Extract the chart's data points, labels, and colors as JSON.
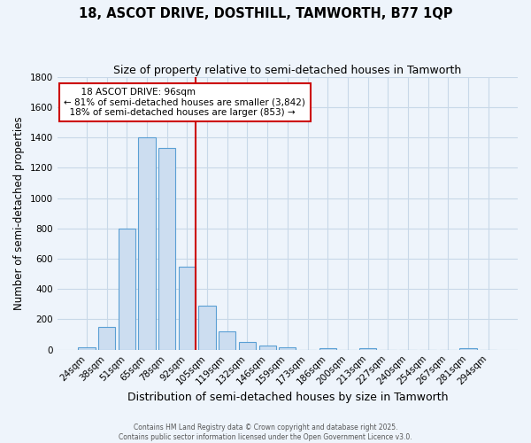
{
  "title1": "18, ASCOT DRIVE, DOSTHILL, TAMWORTH, B77 1QP",
  "title2": "Size of property relative to semi-detached houses in Tamworth",
  "xlabel": "Distribution of semi-detached houses by size in Tamworth",
  "ylabel": "Number of semi-detached properties",
  "bar_labels": [
    "24sqm",
    "38sqm",
    "51sqm",
    "65sqm",
    "78sqm",
    "92sqm",
    "105sqm",
    "119sqm",
    "132sqm",
    "146sqm",
    "159sqm",
    "173sqm",
    "186sqm",
    "200sqm",
    "213sqm",
    "227sqm",
    "240sqm",
    "254sqm",
    "267sqm",
    "281sqm",
    "294sqm"
  ],
  "bar_values": [
    15,
    150,
    800,
    1400,
    1330,
    550,
    290,
    120,
    50,
    25,
    15,
    0,
    10,
    0,
    10,
    0,
    0,
    0,
    0,
    10,
    0
  ],
  "bar_color": "#ccddf0",
  "bar_edge_color": "#5a9fd4",
  "bg_color": "#eef4fb",
  "grid_color": "#c8d8e8",
  "vline_x": 6,
  "vline_color": "#cc0000",
  "annotation_title": "18 ASCOT DRIVE: 96sqm",
  "annotation_line1": "← 81% of semi-detached houses are smaller (3,842)",
  "annotation_line2": "  18% of semi-detached houses are larger (853) →",
  "annotation_box_color": "#cc0000",
  "footer1": "Contains HM Land Registry data © Crown copyright and database right 2025.",
  "footer2": "Contains public sector information licensed under the Open Government Licence v3.0.",
  "ylim": [
    0,
    1800
  ],
  "yticks": [
    0,
    200,
    400,
    600,
    800,
    1000,
    1200,
    1400,
    1600,
    1800
  ]
}
